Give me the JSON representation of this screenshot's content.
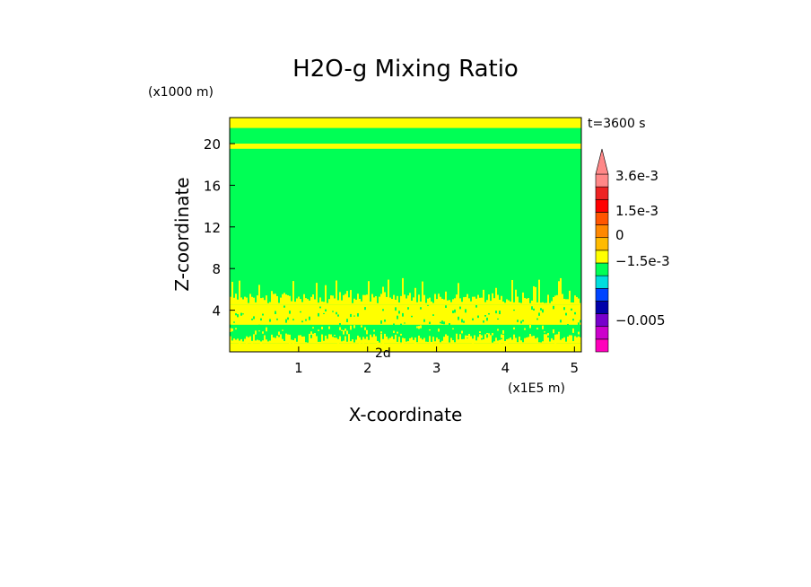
{
  "chart_data": {
    "type": "heatmap",
    "title": "H2O-g Mixing Ratio",
    "xlabel": "X-coordinate",
    "ylabel": "Z-coordinate",
    "x_unit": "(x1E5 m)",
    "y_unit": "(x1000 m)",
    "time_label": "t=3600 s",
    "overlap_label": "2d",
    "xlim": [
      0,
      5.1
    ],
    "ylim": [
      0,
      22.5
    ],
    "x_ticks": [
      1,
      2,
      3,
      4,
      5
    ],
    "y_ticks": [
      4,
      8,
      12,
      16,
      20
    ],
    "x_tick_labels": [
      "1",
      "2",
      "3",
      "4",
      "5"
    ],
    "y_tick_labels": [
      "4",
      "8",
      "12",
      "16",
      "20"
    ],
    "background_level_color": "#00ff55",
    "bands": [
      {
        "z_min": 21.5,
        "z_max": 22.5,
        "color": "#ffff00"
      },
      {
        "z_min": 19.5,
        "z_max": 20.0,
        "color": "#ffff00"
      },
      {
        "z_min": 2.6,
        "z_max": 4.5,
        "color": "#ffff00",
        "noisy": true
      },
      {
        "z_min": 0.0,
        "z_max": 0.8,
        "color": "#ffff00",
        "noisy": true
      }
    ],
    "colorbar": {
      "levels": [
        {
          "color": "#ff00bb"
        },
        {
          "color": "#cc00cc"
        },
        {
          "color": "#7700cc"
        },
        {
          "color": "#0000aa"
        },
        {
          "color": "#0044ff"
        },
        {
          "color": "#00dddd"
        },
        {
          "color": "#00ff55"
        },
        {
          "color": "#ffff00"
        },
        {
          "color": "#ffbb00"
        },
        {
          "color": "#ff8800"
        },
        {
          "color": "#ff5500"
        },
        {
          "color": "#ff0000"
        },
        {
          "color": "#ee2222"
        },
        {
          "color": "#ff8888"
        }
      ],
      "labels": [
        "3.6e-3",
        "1.5e-3",
        "0",
        "−1.5e-3",
        "−0.005"
      ],
      "extend": "max"
    }
  }
}
